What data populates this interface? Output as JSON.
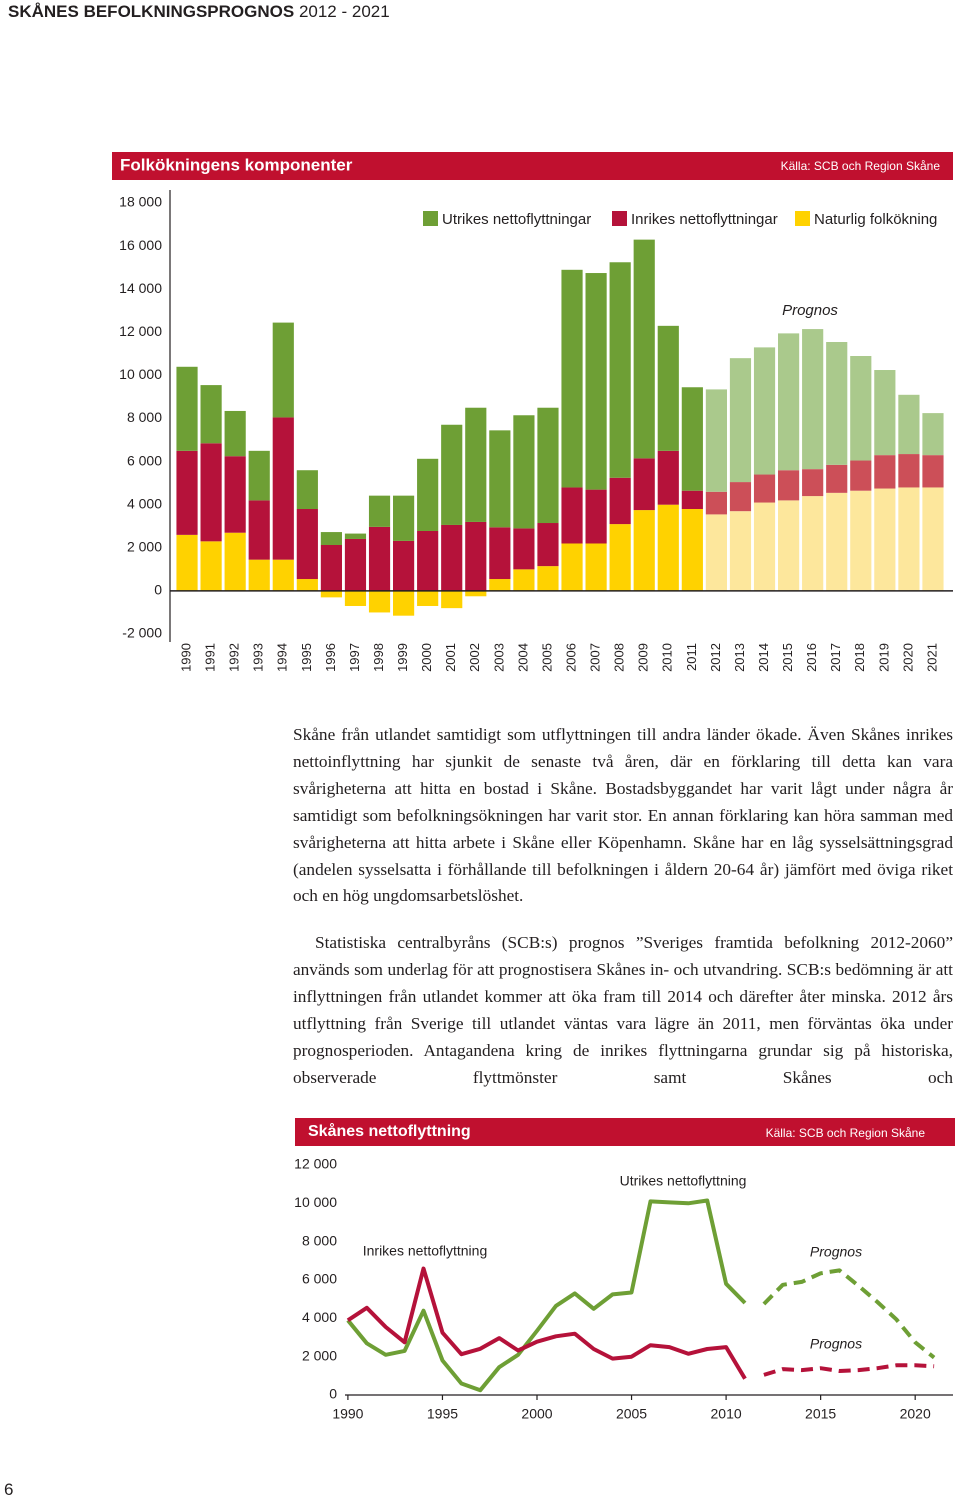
{
  "header": {
    "title": "SKÅNES BEFOLKNINGSPROGNOS",
    "years": "2012 - 2021"
  },
  "chart_data": [
    {
      "type": "bar",
      "stacked": true,
      "title": "Folkökningens komponenter",
      "source": "Källa: SCB och Region Skåne",
      "annotation": "Prognos",
      "categories": [
        "1990",
        "1991",
        "1992",
        "1993",
        "1994",
        "1995",
        "1996",
        "1997",
        "1998",
        "1999",
        "2000",
        "2001",
        "2002",
        "2003",
        "2004",
        "2005",
        "2006",
        "2007",
        "2008",
        "2009",
        "2010",
        "2011",
        "2012",
        "2013",
        "2014",
        "2015",
        "2016",
        "2017",
        "2018",
        "2019",
        "2020",
        "2021"
      ],
      "forecast": [
        false,
        false,
        false,
        false,
        false,
        false,
        false,
        false,
        false,
        false,
        false,
        false,
        false,
        false,
        false,
        false,
        false,
        false,
        false,
        false,
        false,
        false,
        true,
        true,
        true,
        true,
        true,
        true,
        true,
        true,
        true,
        true
      ],
      "series": [
        {
          "name": "Utrikes nettoflyttningar",
          "color": "#6e9f35",
          "forecast_color": "#aac98c",
          "values": [
            3900,
            2700,
            2100,
            2300,
            4400,
            1800,
            600,
            250,
            1450,
            2100,
            3350,
            4650,
            5300,
            4500,
            5250,
            5350,
            10100,
            10050,
            10000,
            10150,
            5800,
            4800,
            4750,
            5750,
            5900,
            6350,
            6500,
            5700,
            4850,
            3950,
            2750,
            1950
          ]
        },
        {
          "name": "Inrikes nettoflyttningar",
          "color": "#b5123a",
          "forecast_color": "#cc4f58",
          "values": [
            3900,
            4550,
            3550,
            2750,
            6600,
            3250,
            2130,
            2410,
            2970,
            2320,
            2780,
            3060,
            3200,
            2400,
            1900,
            2000,
            2600,
            2500,
            2150,
            2400,
            2500,
            850,
            1050,
            1350,
            1300,
            1400,
            1250,
            1300,
            1400,
            1550,
            1550,
            1500
          ]
        },
        {
          "name": "Naturlig folkökning",
          "color": "#ffd200",
          "forecast_color": "#fde79c",
          "values": [
            2600,
            2300,
            2700,
            1450,
            1450,
            550,
            -300,
            -700,
            -1000,
            -1150,
            -700,
            -800,
            -250,
            550,
            1000,
            1150,
            2200,
            2200,
            3100,
            3750,
            4000,
            3800,
            3550,
            3700,
            4100,
            4200,
            4400,
            4550,
            4650,
            4750,
            4800,
            4800
          ]
        }
      ],
      "ylim": [
        -2000,
        18000
      ],
      "yticks": [
        {
          "value": -2000,
          "label": "-2 000"
        },
        0,
        {
          "value": 2000,
          "label": "2 000"
        },
        {
          "value": 4000,
          "label": "4 000"
        },
        {
          "value": 6000,
          "label": "6 000"
        },
        {
          "value": 8000,
          "label": "8 000"
        },
        {
          "value": 10000,
          "label": "10 000"
        },
        {
          "value": 12000,
          "label": "12 000"
        },
        {
          "value": 14000,
          "label": "14 000"
        },
        {
          "value": 16000,
          "label": "16 000"
        },
        {
          "value": 18000,
          "label": "18 000"
        }
      ]
    },
    {
      "type": "line",
      "title": "Skånes nettoflyttning",
      "source": "Källa: SCB och Region Skåne",
      "annotations": [
        "Prognos",
        "Prognos"
      ],
      "x": [
        1990,
        1991,
        1992,
        1993,
        1994,
        1995,
        1996,
        1997,
        1998,
        1999,
        2000,
        2001,
        2002,
        2003,
        2004,
        2005,
        2006,
        2007,
        2008,
        2009,
        2010,
        2011,
        2012,
        2013,
        2014,
        2015,
        2016,
        2017,
        2018,
        2019,
        2020,
        2021
      ],
      "forecast": [
        false,
        false,
        false,
        false,
        false,
        false,
        false,
        false,
        false,
        false,
        false,
        false,
        false,
        false,
        false,
        false,
        false,
        false,
        false,
        false,
        false,
        false,
        true,
        true,
        true,
        true,
        true,
        true,
        true,
        true,
        true,
        true
      ],
      "series": [
        {
          "name": "Utrikes nettoflyttning",
          "color": "#6e9f35",
          "values": [
            3900,
            2700,
            2100,
            2300,
            4400,
            1800,
            600,
            250,
            1450,
            2100,
            3350,
            4650,
            5300,
            4500,
            5250,
            5350,
            10100,
            10050,
            10000,
            10150,
            5800,
            4800,
            4750,
            5750,
            5900,
            6350,
            6500,
            5700,
            4850,
            3950,
            2750,
            1950
          ]
        },
        {
          "name": "Inrikes nettoflyttning",
          "color": "#b5123a",
          "values": [
            3900,
            4550,
            3550,
            2750,
            6600,
            3250,
            2130,
            2410,
            2970,
            2320,
            2780,
            3060,
            3200,
            2400,
            1900,
            2000,
            2600,
            2500,
            2150,
            2400,
            2500,
            850,
            1050,
            1350,
            1300,
            1400,
            1250,
            1300,
            1400,
            1550,
            1550,
            1500
          ]
        }
      ],
      "xlim": [
        1989,
        2022
      ],
      "xticks": [
        1990,
        1995,
        2000,
        2005,
        2010,
        2015,
        2020
      ],
      "ylim": [
        0,
        12000
      ],
      "yticks": [
        0,
        {
          "value": 2000,
          "label": "2 000"
        },
        {
          "value": 4000,
          "label": "4 000"
        },
        {
          "value": 6000,
          "label": "6 000"
        },
        {
          "value": 8000,
          "label": "8 000"
        },
        {
          "value": 10000,
          "label": "10 000"
        },
        {
          "value": 12000,
          "label": "12 000"
        }
      ]
    }
  ],
  "paragraphs": [
    "Skåne från utlandet samtidigt som utflyttningen till andra länder ökade. Även Skånes inrikes nettoinflyttning har sjunkit de senaste två åren, där en förklaring till detta kan vara svårigheterna att hitta en bostad i Skåne. Bostadsbyggandet har varit lågt under några år samtidigt som befolkningsökningen har varit stor. En annan förklaring kan höra samman med svårigheterna att hitta arbete i Skåne eller Köpen­hamn. Skåne har en låg sysselsättningsgrad (andelen sysselsatta i förhållande till befolkningen i åldern 20-64 år) jämfört med öviga riket och en hög ungdomsarbets­löshet.",
    "Statistiska centralbyråns (SCB:s) prognos ”Sveriges framtida befolkning 2012-2060” används som underlag för att prognostisera Skånes in- och utvandring. SCB:s bedömning är att inflyttningen från utlandet kommer att öka fram till 2014 och därefter åter minska. 2012 års utflyttning från Sverige till utlandet väntas vara lägre än 2011, men förväntas öka under prognosperioden. Antagandena kring de inrikes flyttningarna grundar sig på historiska, observerade flyttmönster samt Skånes och"
  ],
  "page_number": "6"
}
